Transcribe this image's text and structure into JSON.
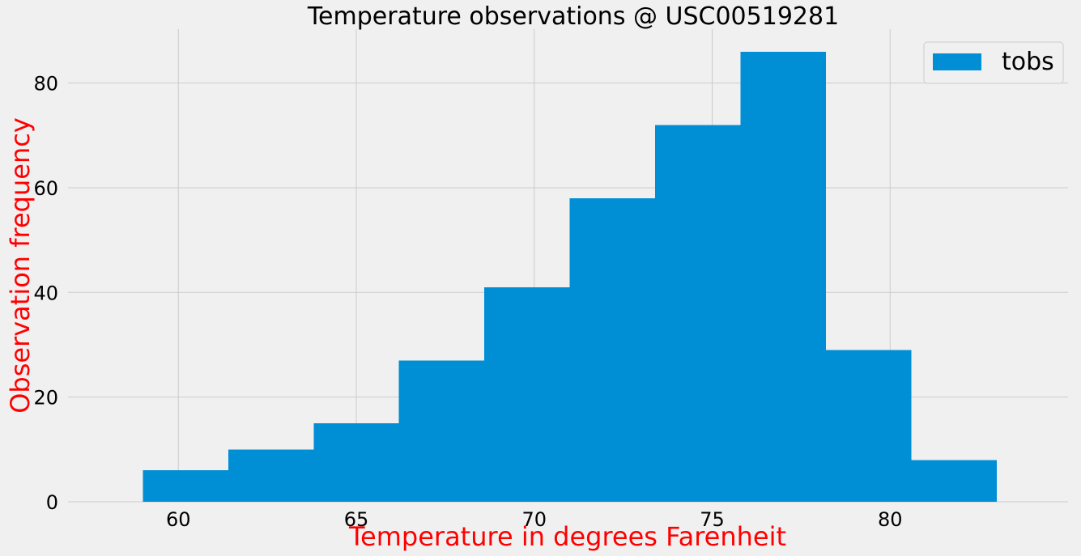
{
  "chart_data": {
    "type": "bar",
    "title": "Temperature observations @ USC00519281",
    "xlabel": "Temperature in degrees Farenheit",
    "ylabel": "Observation frequency",
    "label_color": "#ff0000",
    "bar_color": "#008fd5",
    "background_color": "#f0f0f0",
    "grid_color": "#cbcbcb",
    "grid": true,
    "legend_position": "top-right",
    "series": [
      {
        "name": "tobs",
        "bins": [
          {
            "x0": 59.0,
            "x1": 61.4,
            "value": 6
          },
          {
            "x0": 61.4,
            "x1": 63.8,
            "value": 10
          },
          {
            "x0": 63.8,
            "x1": 66.2,
            "value": 15
          },
          {
            "x0": 66.2,
            "x1": 68.6,
            "value": 27
          },
          {
            "x0": 68.6,
            "x1": 71.0,
            "value": 41
          },
          {
            "x0": 71.0,
            "x1": 73.4,
            "value": 58
          },
          {
            "x0": 73.4,
            "x1": 75.8,
            "value": 72
          },
          {
            "x0": 75.8,
            "x1": 78.2,
            "value": 86
          },
          {
            "x0": 78.2,
            "x1": 80.6,
            "value": 29
          },
          {
            "x0": 80.6,
            "x1": 83.0,
            "value": 8
          }
        ]
      }
    ],
    "xlim": [
      56.9,
      85.0
    ],
    "ylim": [
      0,
      90.3
    ],
    "x_ticks": [
      60,
      65,
      70,
      75,
      80
    ],
    "y_ticks": [
      0,
      20,
      40,
      60,
      80
    ]
  }
}
